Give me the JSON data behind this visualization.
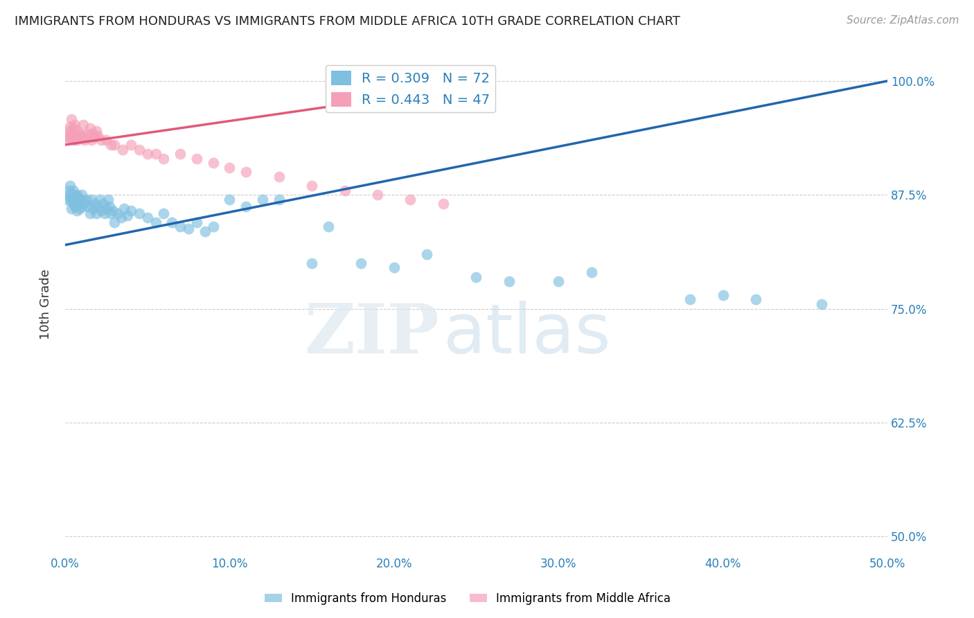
{
  "title": "IMMIGRANTS FROM HONDURAS VS IMMIGRANTS FROM MIDDLE AFRICA 10TH GRADE CORRELATION CHART",
  "source": "Source: ZipAtlas.com",
  "ylabel": "10th Grade",
  "legend_honduras": "Immigrants from Honduras",
  "legend_middle_africa": "Immigrants from Middle Africa",
  "R_honduras": 0.309,
  "N_honduras": 72,
  "R_middle_africa": 0.443,
  "N_middle_africa": 47,
  "xlim": [
    0.0,
    0.5
  ],
  "ylim": [
    0.48,
    1.03
  ],
  "xticks": [
    0.0,
    0.1,
    0.2,
    0.3,
    0.4,
    0.5
  ],
  "yticks": [
    0.5,
    0.625,
    0.75,
    0.875,
    1.0
  ],
  "ytick_labels": [
    "50.0%",
    "62.5%",
    "75.0%",
    "87.5%",
    "100.0%"
  ],
  "xtick_labels": [
    "0.0%",
    "10.0%",
    "20.0%",
    "30.0%",
    "40.0%",
    "50.0%"
  ],
  "color_honduras": "#7fbfdf",
  "color_middle_africa": "#f4a0b8",
  "line_color_honduras": "#2166ac",
  "line_color_middle_africa": "#e05a7a",
  "watermark_zip": "ZIP",
  "watermark_atlas": "atlas",
  "honduras_x": [
    0.001,
    0.002,
    0.002,
    0.003,
    0.003,
    0.004,
    0.004,
    0.005,
    0.005,
    0.005,
    0.006,
    0.006,
    0.007,
    0.007,
    0.008,
    0.008,
    0.009,
    0.009,
    0.01,
    0.01,
    0.011,
    0.012,
    0.013,
    0.014,
    0.015,
    0.016,
    0.017,
    0.018,
    0.019,
    0.02,
    0.021,
    0.022,
    0.023,
    0.024,
    0.025,
    0.026,
    0.027,
    0.028,
    0.029,
    0.03,
    0.032,
    0.034,
    0.036,
    0.038,
    0.04,
    0.045,
    0.05,
    0.055,
    0.06,
    0.065,
    0.07,
    0.075,
    0.08,
    0.085,
    0.09,
    0.1,
    0.11,
    0.12,
    0.13,
    0.15,
    0.16,
    0.18,
    0.2,
    0.22,
    0.25,
    0.27,
    0.3,
    0.32,
    0.38,
    0.4,
    0.42,
    0.46
  ],
  "honduras_y": [
    0.87,
    0.875,
    0.88,
    0.885,
    0.872,
    0.86,
    0.868,
    0.88,
    0.875,
    0.865,
    0.87,
    0.862,
    0.875,
    0.858,
    0.872,
    0.865,
    0.87,
    0.86,
    0.875,
    0.862,
    0.865,
    0.868,
    0.87,
    0.862,
    0.855,
    0.87,
    0.86,
    0.865,
    0.855,
    0.862,
    0.87,
    0.858,
    0.865,
    0.855,
    0.86,
    0.87,
    0.862,
    0.855,
    0.858,
    0.845,
    0.855,
    0.85,
    0.86,
    0.852,
    0.858,
    0.855,
    0.85,
    0.845,
    0.855,
    0.845,
    0.84,
    0.838,
    0.845,
    0.835,
    0.84,
    0.87,
    0.862,
    0.87,
    0.87,
    0.8,
    0.84,
    0.8,
    0.795,
    0.81,
    0.785,
    0.78,
    0.78,
    0.79,
    0.76,
    0.765,
    0.76,
    0.755
  ],
  "middle_africa_x": [
    0.001,
    0.002,
    0.002,
    0.003,
    0.003,
    0.004,
    0.004,
    0.005,
    0.005,
    0.006,
    0.006,
    0.007,
    0.007,
    0.008,
    0.009,
    0.01,
    0.011,
    0.012,
    0.013,
    0.014,
    0.015,
    0.016,
    0.017,
    0.018,
    0.019,
    0.02,
    0.022,
    0.025,
    0.028,
    0.03,
    0.035,
    0.04,
    0.045,
    0.05,
    0.055,
    0.06,
    0.07,
    0.08,
    0.09,
    0.1,
    0.11,
    0.13,
    0.15,
    0.17,
    0.19,
    0.21,
    0.23
  ],
  "middle_africa_y": [
    0.94,
    0.945,
    0.935,
    0.95,
    0.938,
    0.942,
    0.958,
    0.935,
    0.948,
    0.94,
    0.952,
    0.935,
    0.945,
    0.938,
    0.942,
    0.94,
    0.952,
    0.935,
    0.938,
    0.942,
    0.948,
    0.935,
    0.942,
    0.938,
    0.945,
    0.94,
    0.935,
    0.935,
    0.93,
    0.93,
    0.925,
    0.93,
    0.925,
    0.92,
    0.92,
    0.915,
    0.92,
    0.915,
    0.91,
    0.905,
    0.9,
    0.895,
    0.885,
    0.88,
    0.875,
    0.87,
    0.865
  ],
  "blue_line_x0": 0.0,
  "blue_line_y0": 0.82,
  "blue_line_x1": 0.5,
  "blue_line_y1": 1.0,
  "pink_line_x0": 0.0,
  "pink_line_y0": 0.93,
  "pink_line_x1": 0.23,
  "pink_line_y1": 0.99
}
